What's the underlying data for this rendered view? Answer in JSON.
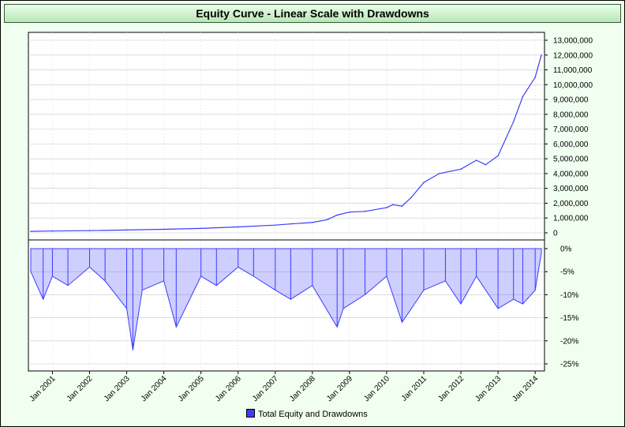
{
  "title": "Equity Curve - Linear Scale with Drawdowns",
  "legend": {
    "label": "Total Equity and Drawdowns",
    "color": "#3c3cff"
  },
  "colors": {
    "background": "#f0fff0",
    "series": "#3c3cff",
    "grid": "#c8c8c8"
  },
  "chart_data": [
    {
      "type": "line",
      "name": "equity",
      "series": [
        {
          "name": "Total Equity and Drawdowns",
          "x": [
            "2000-06",
            "2001-01",
            "2002-01",
            "2003-01",
            "2004-01",
            "2005-01",
            "2006-01",
            "2007-01",
            "2007-06",
            "2008-01",
            "2008-06",
            "2008-09",
            "2009-01",
            "2009-06",
            "2010-01",
            "2010-03",
            "2010-06",
            "2010-09",
            "2011-01",
            "2011-06",
            "2012-01",
            "2012-06",
            "2012-09",
            "2013-01",
            "2013-06",
            "2013-09",
            "2014-01",
            "2014-03"
          ],
          "values": [
            100000,
            120000,
            150000,
            190000,
            240000,
            300000,
            400000,
            520000,
            600000,
            700000,
            900000,
            1200000,
            1400000,
            1450000,
            1700000,
            1900000,
            1800000,
            2400000,
            3400000,
            4000000,
            4300000,
            4900000,
            4600000,
            5200000,
            7500000,
            9200000,
            10500000,
            12000000
          ]
        }
      ],
      "ylim": [
        0,
        13000000
      ],
      "yticks": [
        "13,000,000",
        "12,000,000",
        "11,000,000",
        "10,000,000",
        "9,000,000",
        "8,000,000",
        "7,000,000",
        "6,000,000",
        "5,000,000",
        "4,000,000",
        "3,000,000",
        "2,000,000",
        "1,000,000",
        "0"
      ],
      "grid": true
    },
    {
      "type": "area",
      "name": "drawdowns",
      "series": [
        {
          "name": "Total Equity and Drawdowns",
          "x": [
            "2000-06",
            "2000-10",
            "2001-01",
            "2001-06",
            "2002-01",
            "2002-06",
            "2003-01",
            "2003-03",
            "2003-06",
            "2004-01",
            "2004-05",
            "2005-01",
            "2005-06",
            "2006-01",
            "2006-06",
            "2007-01",
            "2007-06",
            "2008-01",
            "2008-09",
            "2008-11",
            "2009-06",
            "2010-01",
            "2010-06",
            "2011-01",
            "2011-08",
            "2012-01",
            "2012-06",
            "2013-01",
            "2013-06",
            "2013-09",
            "2014-01",
            "2014-03"
          ],
          "values": [
            -5,
            -11,
            -6,
            -8,
            -4,
            -7,
            -13,
            -22,
            -9,
            -7,
            -17,
            -6,
            -8,
            -4,
            -6,
            -9,
            -11,
            -8,
            -17,
            -13,
            -10,
            -6,
            -16,
            -9,
            -7,
            -12,
            -6,
            -13,
            -11,
            -12,
            -9,
            -1
          ]
        }
      ],
      "ylim": [
        -26,
        1
      ],
      "yticks": [
        "0%",
        "-5%",
        "-10%",
        "-15%",
        "-20%",
        "-25%"
      ],
      "grid": true
    }
  ],
  "xticks": [
    "Jan 2001",
    "Jan 2002",
    "Jan 2003",
    "Jan 2004",
    "Jan 2005",
    "Jan 2006",
    "Jan 2007",
    "Jan 2008",
    "Jan 2009",
    "Jan 2010",
    "Jan 2011",
    "Jan 2012",
    "Jan 2013",
    "Jan 2014"
  ]
}
